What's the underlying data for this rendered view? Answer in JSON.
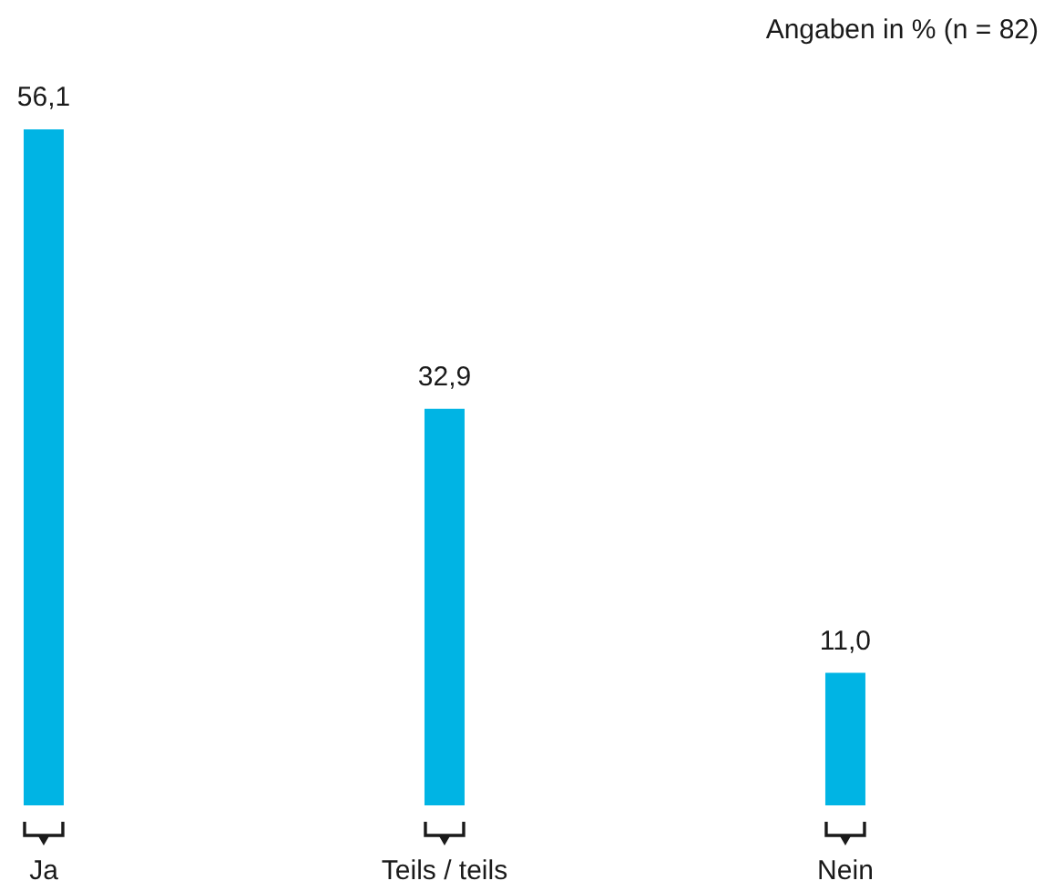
{
  "chart_data": {
    "type": "bar",
    "annotations": [
      "Angaben in % (n = 82)"
    ],
    "categories": [
      "Ja",
      "Teils / teils",
      "Nein"
    ],
    "values": [
      56.1,
      32.9,
      11.0
    ],
    "value_labels": [
      "56,1",
      "32,9",
      "11,0"
    ],
    "color": "#00b4e4"
  }
}
